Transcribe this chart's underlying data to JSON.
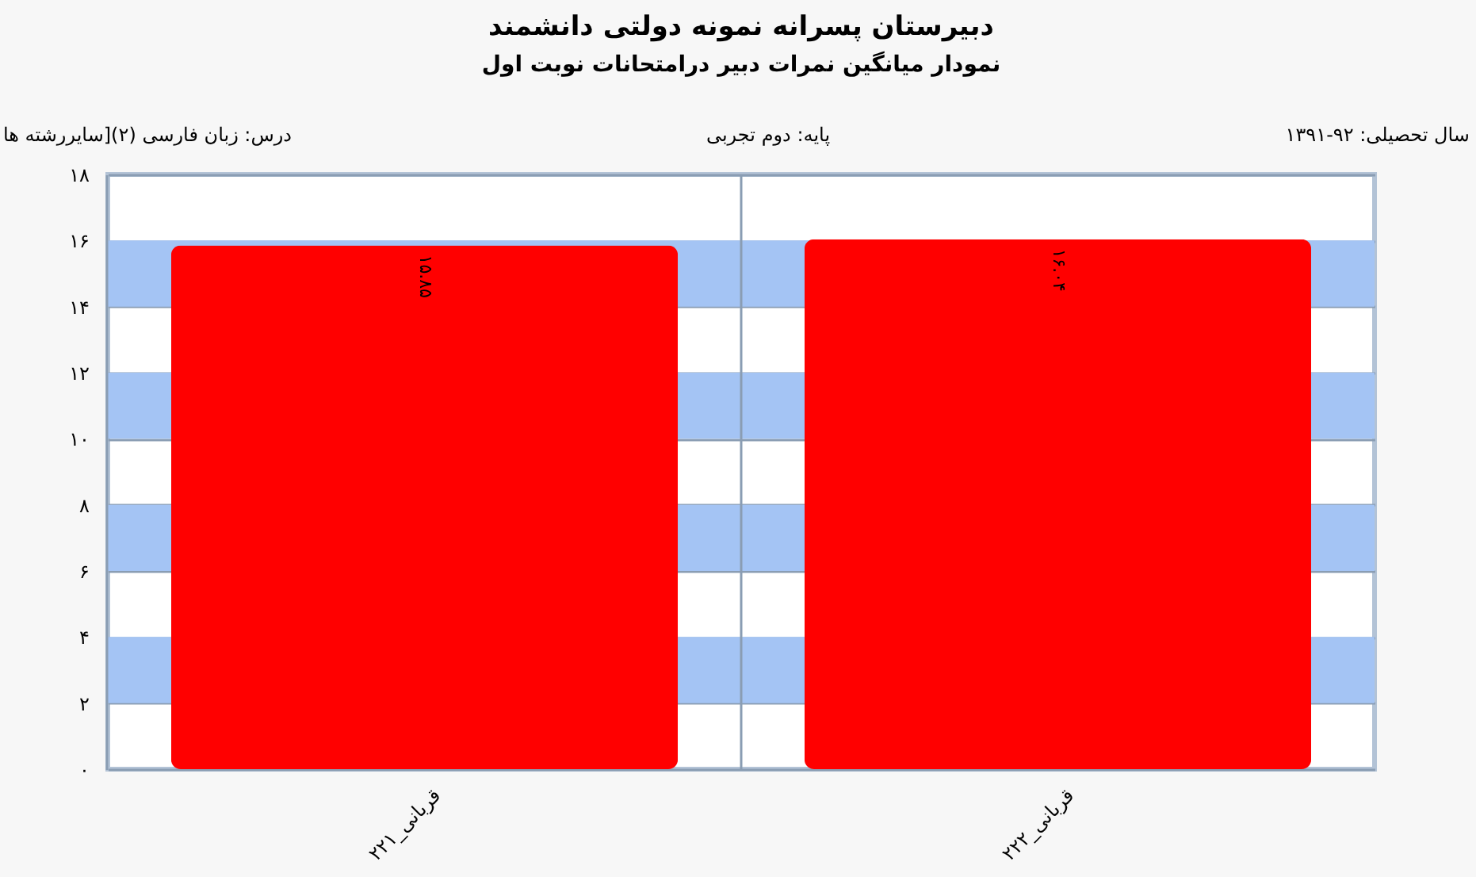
{
  "chart_data": {
    "type": "bar",
    "title": "دبیرستان پسرانه نمونه دولتی دانشمند",
    "subtitle": "نمودار میانگین نمرات دبیر درامتحانات نوبت اول",
    "annotations": [
      "سال تحصیلی: ۹۲-۱۳۹۱",
      "پایه: دوم تجربی",
      "درس: زبان فارسی  (۲)[سایررشته ها"
    ],
    "categories": [
      "قربانی_۲۲۱",
      "قربانی_۲۲۲"
    ],
    "values": [
      15.85,
      16.04
    ],
    "color": "#ff0000",
    "value_labels": [
      "۱۵.۸۵",
      "۱۶.۰۴"
    ],
    "ylim": [
      0,
      18
    ],
    "yticks": [
      {
        "value": 0,
        "label": "۰"
      },
      {
        "value": 2,
        "label": "۲"
      },
      {
        "value": 4,
        "label": "۴"
      },
      {
        "value": 6,
        "label": "۶"
      },
      {
        "value": 8,
        "label": "۸"
      },
      {
        "value": 10,
        "label": "۱۰"
      },
      {
        "value": 12,
        "label": "۱۲"
      },
      {
        "value": 14,
        "label": "۱۴"
      },
      {
        "value": 16,
        "label": "۱۶"
      },
      {
        "value": 18,
        "label": "۱۸"
      }
    ],
    "grid": true,
    "bands": [
      {
        "axis": "y",
        "from": 2,
        "to": 4,
        "color": "#a4c4f4"
      },
      {
        "axis": "y",
        "from": 6,
        "to": 8,
        "color": "#a4c4f4"
      },
      {
        "axis": "y",
        "from": 10,
        "to": 12,
        "color": "#a4c4f4"
      },
      {
        "axis": "y",
        "from": 14,
        "to": 16,
        "color": "#a4c4f4"
      }
    ]
  }
}
